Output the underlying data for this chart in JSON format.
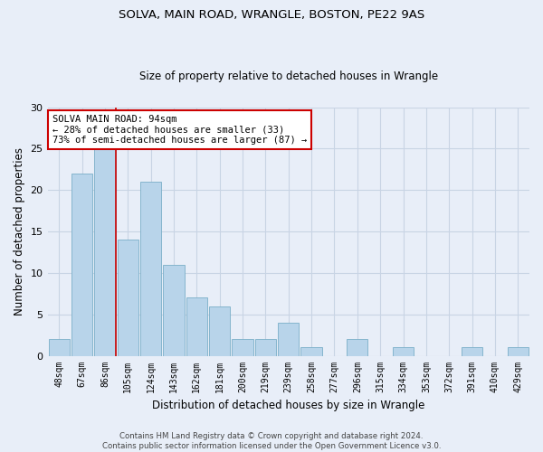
{
  "title1": "SOLVA, MAIN ROAD, WRANGLE, BOSTON, PE22 9AS",
  "title2": "Size of property relative to detached houses in Wrangle",
  "xlabel": "Distribution of detached houses by size in Wrangle",
  "ylabel": "Number of detached properties",
  "categories": [
    "48sqm",
    "67sqm",
    "86sqm",
    "105sqm",
    "124sqm",
    "143sqm",
    "162sqm",
    "181sqm",
    "200sqm",
    "219sqm",
    "239sqm",
    "258sqm",
    "277sqm",
    "296sqm",
    "315sqm",
    "334sqm",
    "353sqm",
    "372sqm",
    "391sqm",
    "410sqm",
    "429sqm"
  ],
  "values": [
    2,
    22,
    25,
    14,
    21,
    11,
    7,
    6,
    2,
    2,
    4,
    1,
    0,
    2,
    0,
    1,
    0,
    0,
    1,
    0,
    1
  ],
  "bar_color": "#b8d4ea",
  "bar_edge_color": "#7aaec8",
  "grid_color": "#c8d4e4",
  "background_color": "#e8eef8",
  "vline_index": 2,
  "vline_color": "#cc0000",
  "annotation_line1": "SOLVA MAIN ROAD: 94sqm",
  "annotation_line2": "← 28% of detached houses are smaller (33)",
  "annotation_line3": "73% of semi-detached houses are larger (87) →",
  "annotation_box_color": "#ffffff",
  "annotation_box_edge": "#cc0000",
  "footer": "Contains HM Land Registry data © Crown copyright and database right 2024.\nContains public sector information licensed under the Open Government Licence v3.0.",
  "ylim": [
    0,
    30
  ],
  "yticks": [
    0,
    5,
    10,
    15,
    20,
    25,
    30
  ]
}
